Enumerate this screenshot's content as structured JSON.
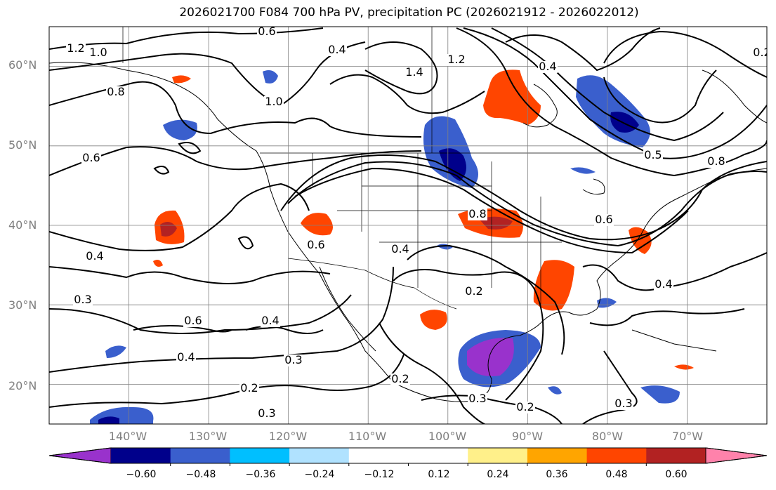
{
  "title": "2026021700 F084 700 hPa PV, precipitation PC (2026021912 - 2026022012)",
  "map": {
    "projection": "Plate Carree",
    "lon_range": [
      -150,
      -60
    ],
    "lat_range": [
      15,
      65
    ],
    "lat_labels": [
      "20°N",
      "30°N",
      "40°N",
      "50°N",
      "60°N"
    ],
    "lon_labels": [
      "140°W",
      "130°W",
      "120°W",
      "110°W",
      "100°W",
      "90°W",
      "80°W",
      "70°W"
    ],
    "grid_color": "#808080",
    "contour_labels": [
      "1.2",
      "1.0",
      "0.6",
      "0.4",
      "0.8",
      "1.0",
      "1.4",
      "1.2",
      "0.4",
      "0.6",
      "0.6",
      "0.8",
      "0.4",
      "0.5",
      "0.8",
      "0.6",
      "0.4",
      "0.4",
      "0.3",
      "0.2",
      "0.6",
      "0.4",
      "0.4",
      "0.3",
      "0.2",
      "0.3",
      "0.2",
      "0.3",
      "0.2",
      "0.3",
      "0.2"
    ]
  },
  "colorbar": {
    "ticks": [
      "−0.60",
      "−0.48",
      "−0.36",
      "−0.24",
      "−0.12",
      "0.12",
      "0.24",
      "0.36",
      "0.48",
      "0.60"
    ],
    "colors": {
      "under": "#9932cc",
      "b1": "#00008b",
      "b2": "#3a5fcd",
      "b3": "#00bfff",
      "b4": "#b0e2ff",
      "mid": "#ffffff",
      "b5": "#fff08a",
      "b6": "#ffa500",
      "b7": "#ff4500",
      "b8": "#b22222",
      "over": "#ff82ab"
    }
  }
}
